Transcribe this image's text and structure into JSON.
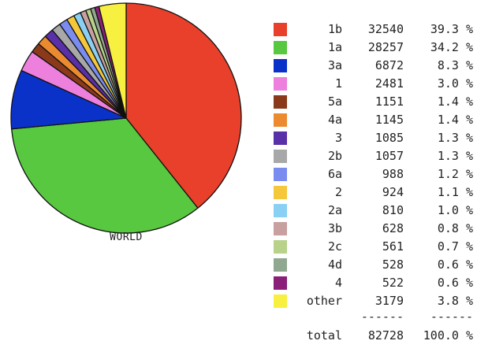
{
  "chart_data": {
    "type": "pie",
    "title": "WORLD",
    "slices": [
      {
        "label": "1b",
        "count": "32540",
        "pct": "39.3 %",
        "value": 39.3,
        "color": "#e8402a"
      },
      {
        "label": "1a",
        "count": "28257",
        "pct": "34.2 %",
        "value": 34.2,
        "color": "#58c840"
      },
      {
        "label": "3a",
        "count": "6872",
        "pct": "8.3 %",
        "value": 8.3,
        "color": "#0a32c8"
      },
      {
        "label": "1",
        "count": "2481",
        "pct": "3.0 %",
        "value": 3.0,
        "color": "#ec80dc"
      },
      {
        "label": "5a",
        "count": "1151",
        "pct": "1.4 %",
        "value": 1.4,
        "color": "#8a3a1a"
      },
      {
        "label": "4a",
        "count": "1145",
        "pct": "1.4 %",
        "value": 1.4,
        "color": "#ec8a30"
      },
      {
        "label": "3",
        "count": "1085",
        "pct": "1.3 %",
        "value": 1.3,
        "color": "#5a30a8"
      },
      {
        "label": "2b",
        "count": "1057",
        "pct": "1.3 %",
        "value": 1.3,
        "color": "#a8a8a8"
      },
      {
        "label": "6a",
        "count": "988",
        "pct": "1.2 %",
        "value": 1.2,
        "color": "#7a8cf0"
      },
      {
        "label": "2",
        "count": "924",
        "pct": "1.1 %",
        "value": 1.1,
        "color": "#f4c83a"
      },
      {
        "label": "2a",
        "count": "810",
        "pct": "1.0 %",
        "value": 1.0,
        "color": "#8ad0f4"
      },
      {
        "label": "3b",
        "count": "628",
        "pct": "0.8 %",
        "value": 0.8,
        "color": "#c8a0a0"
      },
      {
        "label": "2c",
        "count": "561",
        "pct": "0.7 %",
        "value": 0.7,
        "color": "#b8d28a"
      },
      {
        "label": "4d",
        "count": "528",
        "pct": "0.6 %",
        "value": 0.6,
        "color": "#90a890"
      },
      {
        "label": "4",
        "count": "522",
        "pct": "0.6 %",
        "value": 0.6,
        "color": "#8a2078"
      },
      {
        "label": "other",
        "count": "3179",
        "pct": "3.8 %",
        "value": 3.8,
        "color": "#f8f040"
      }
    ],
    "separator_count": "------",
    "separator_pct": "------",
    "total_label": "total",
    "total_count": "82728",
    "total_pct": "100.0 %"
  }
}
